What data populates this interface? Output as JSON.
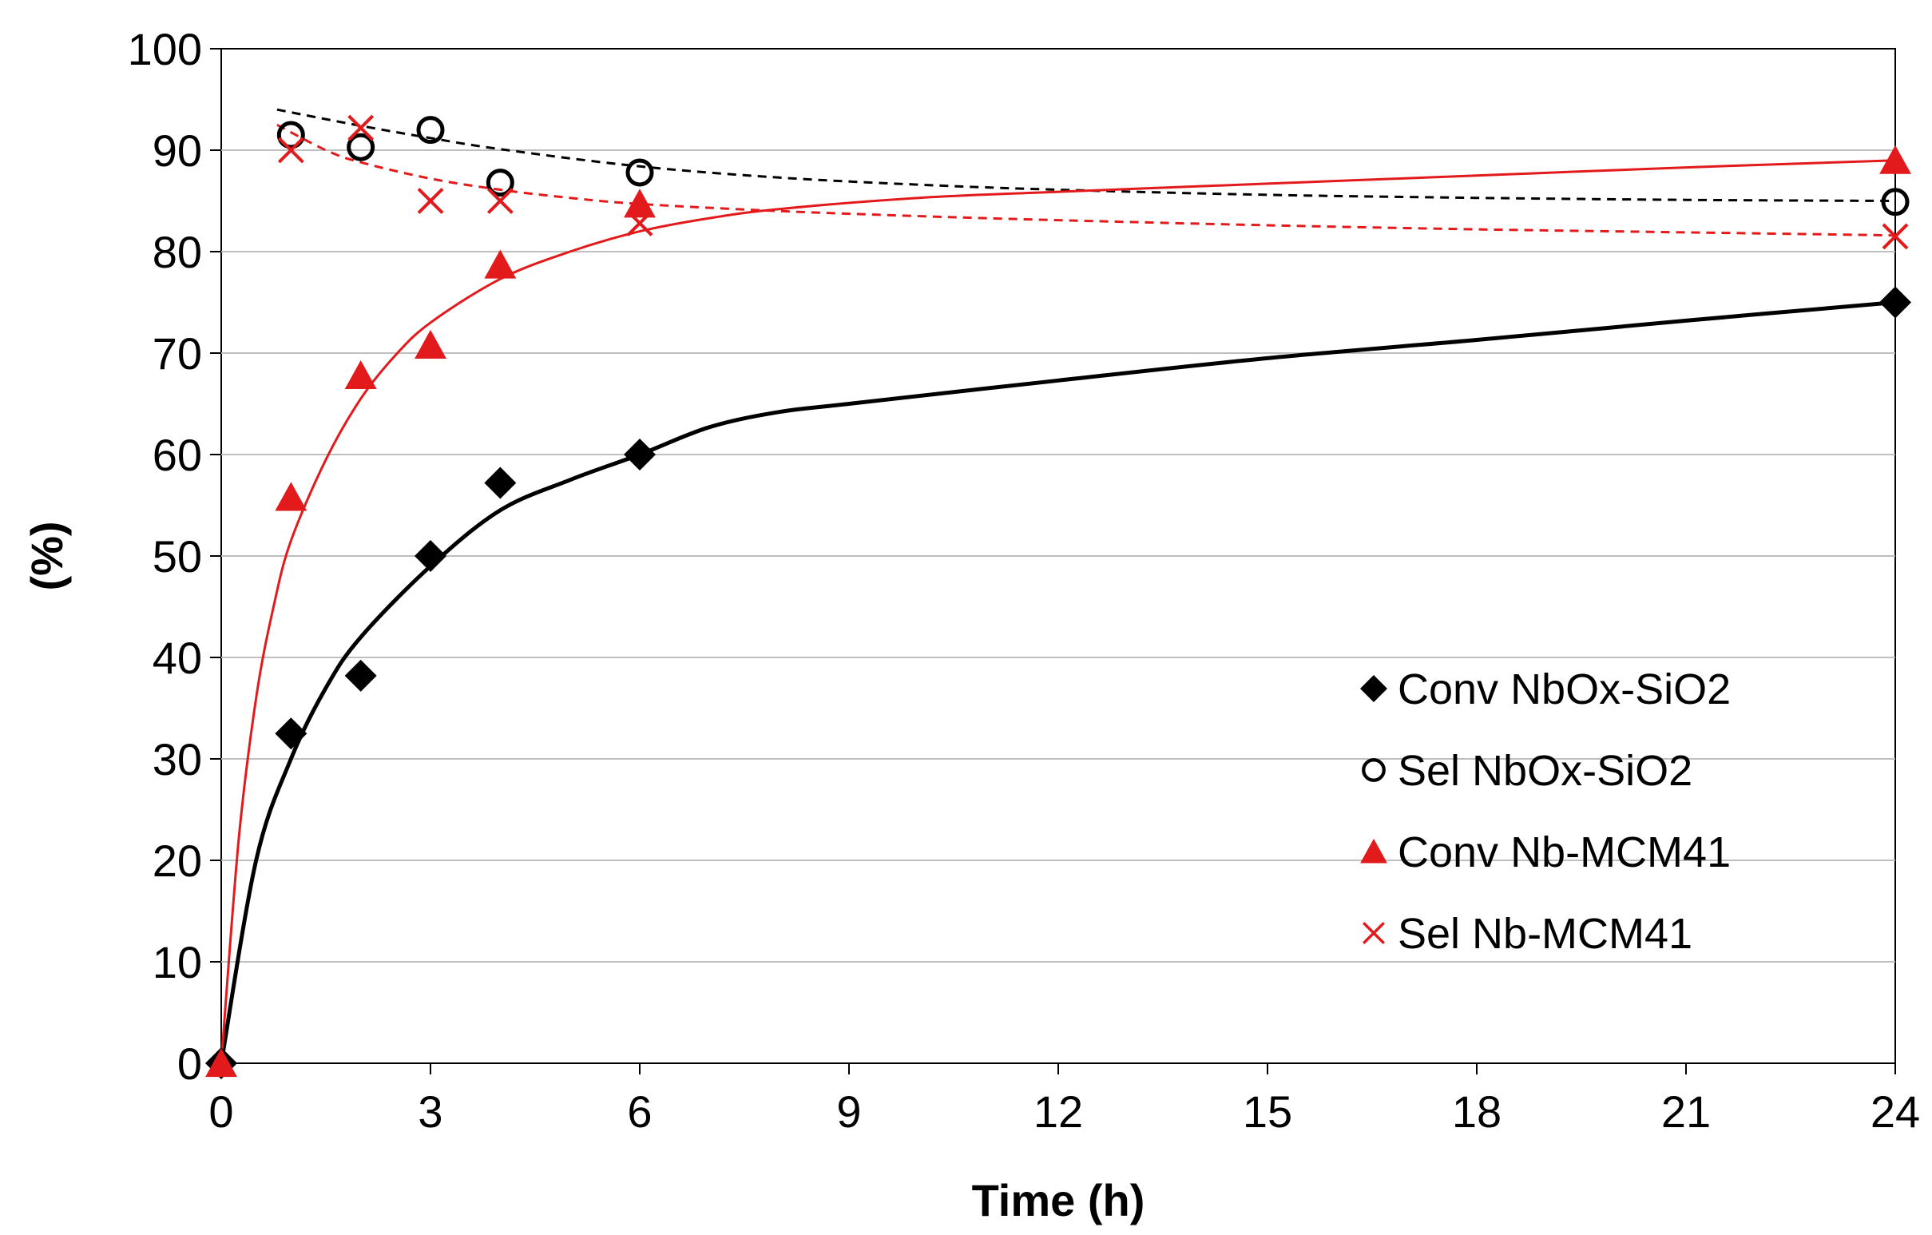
{
  "chart_data": {
    "type": "scatter",
    "xlabel": "Time (h)",
    "ylabel": "(%)",
    "xlim": [
      0,
      24
    ],
    "ylim": [
      0,
      100
    ],
    "xticks": [
      0,
      3,
      6,
      9,
      12,
      15,
      18,
      21,
      24
    ],
    "yticks": [
      0,
      10,
      20,
      30,
      40,
      50,
      60,
      70,
      80,
      90,
      100
    ],
    "legend_position": "bottom-right",
    "series": [
      {
        "name": "Conv NbOx-SiO2",
        "color": "#000000",
        "marker": "diamond",
        "points": [
          [
            0,
            0
          ],
          [
            1,
            32.5
          ],
          [
            2,
            38.2
          ],
          [
            3,
            50
          ],
          [
            4,
            57.2
          ],
          [
            6,
            60
          ],
          [
            24,
            75
          ]
        ],
        "trend": {
          "style": "solid",
          "points": [
            [
              0,
              0
            ],
            [
              0.5,
              20
            ],
            [
              1,
              30
            ],
            [
              1.5,
              37
            ],
            [
              2,
              42
            ],
            [
              3,
              49
            ],
            [
              4,
              54.5
            ],
            [
              5,
              57.5
            ],
            [
              6,
              60
            ],
            [
              7,
              62.7
            ],
            [
              8,
              64.2
            ],
            [
              9,
              65
            ],
            [
              12,
              67.3
            ],
            [
              15,
              69.5
            ],
            [
              18,
              71.3
            ],
            [
              21,
              73.2
            ],
            [
              24,
              75
            ]
          ]
        }
      },
      {
        "name": "Sel NbOx-SiO2",
        "color": "#000000",
        "marker": "circle",
        "points": [
          [
            1,
            91.5
          ],
          [
            2,
            90.3
          ],
          [
            3,
            92
          ],
          [
            4,
            86.8
          ],
          [
            6,
            87.8
          ],
          [
            24,
            84.9
          ]
        ],
        "trend": {
          "style": "dashed",
          "points": [
            [
              0.8,
              94
            ],
            [
              2,
              92.4
            ],
            [
              3,
              91.2
            ],
            [
              4,
              90.1
            ],
            [
              6,
              88.4
            ],
            [
              8,
              87.3
            ],
            [
              10,
              86.6
            ],
            [
              12,
              86.1
            ],
            [
              15,
              85.6
            ],
            [
              18,
              85.3
            ],
            [
              21,
              85.1
            ],
            [
              24,
              85
            ]
          ]
        }
      },
      {
        "name": "Conv Nb-MCM41",
        "color": "#e31a1c",
        "marker": "triangle",
        "points": [
          [
            0,
            0
          ],
          [
            1,
            55.8
          ],
          [
            2,
            67.8
          ],
          [
            3,
            70.8
          ],
          [
            4,
            78.7
          ],
          [
            6,
            84.7
          ],
          [
            24,
            89
          ]
        ],
        "trend": {
          "style": "solid",
          "points": [
            [
              0,
              0
            ],
            [
              0.25,
              22
            ],
            [
              0.5,
              36
            ],
            [
              0.75,
              45
            ],
            [
              1,
              51.5
            ],
            [
              1.5,
              59.5
            ],
            [
              2,
              65.5
            ],
            [
              2.5,
              69.8
            ],
            [
              3,
              73
            ],
            [
              4,
              77.3
            ],
            [
              5,
              80
            ],
            [
              6,
              82
            ],
            [
              7,
              83.3
            ],
            [
              8,
              84.2
            ],
            [
              10,
              85.3
            ],
            [
              12,
              85.9
            ],
            [
              15,
              86.7
            ],
            [
              18,
              87.5
            ],
            [
              21,
              88.3
            ],
            [
              24,
              89
            ]
          ]
        }
      },
      {
        "name": "Sel Nb-MCM41",
        "color": "#e31a1c",
        "marker": "x",
        "points": [
          [
            1,
            90
          ],
          [
            2,
            92.2
          ],
          [
            3,
            85
          ],
          [
            4,
            85
          ],
          [
            6,
            82.8
          ],
          [
            24,
            81.5
          ]
        ],
        "trend": {
          "style": "dashed",
          "points": [
            [
              0.8,
              92.5
            ],
            [
              1.5,
              90
            ],
            [
              2,
              88.8
            ],
            [
              3,
              87.2
            ],
            [
              4,
              86.1
            ],
            [
              5,
              85.3
            ],
            [
              6,
              84.7
            ],
            [
              8,
              84
            ],
            [
              10,
              83.5
            ],
            [
              12,
              83.1
            ],
            [
              15,
              82.6
            ],
            [
              18,
              82.2
            ],
            [
              21,
              81.9
            ],
            [
              24,
              81.6
            ]
          ]
        }
      }
    ]
  }
}
